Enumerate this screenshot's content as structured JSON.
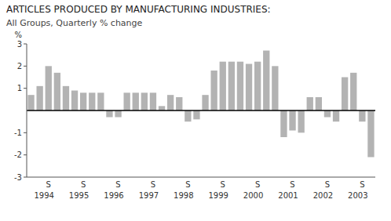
{
  "chart_data": {
    "type": "bar",
    "title": "ARTICLES PRODUCED BY MANUFACTURING INDUSTRIES:",
    "subtitle": "All Groups, Quarterly % change",
    "ylabel": "%",
    "categories": [
      null,
      null,
      "S",
      null,
      null,
      null,
      "S",
      null,
      null,
      null,
      "S",
      null,
      null,
      null,
      "S",
      null,
      null,
      null,
      "S",
      null,
      null,
      null,
      "S",
      null,
      null,
      null,
      "S",
      null,
      null,
      null,
      "S",
      null,
      null,
      null,
      "S",
      null,
      null,
      null,
      "S",
      null
    ],
    "groups": [
      "1994",
      "1995",
      "1996",
      "1997",
      "1998",
      "1999",
      "2000",
      "2001",
      "2002",
      "2003"
    ],
    "values": [
      0.7,
      1.1,
      2.0,
      1.7,
      1.1,
      0.9,
      0.8,
      0.8,
      0.8,
      -0.3,
      -0.3,
      0.8,
      0.8,
      0.8,
      0.8,
      0.2,
      0.7,
      0.6,
      -0.5,
      -0.4,
      0.7,
      1.8,
      2.2,
      2.2,
      2.2,
      2.1,
      2.2,
      2.7,
      2.0,
      -1.2,
      -0.9,
      -1.0,
      0.6,
      0.6,
      -0.3,
      -0.5,
      1.5,
      1.7,
      -0.5,
      -2.1
    ],
    "color": "#b3b3b3",
    "ylim": [
      -3,
      3
    ],
    "yticks": [
      -3,
      -2,
      -1,
      1,
      2,
      3
    ]
  }
}
